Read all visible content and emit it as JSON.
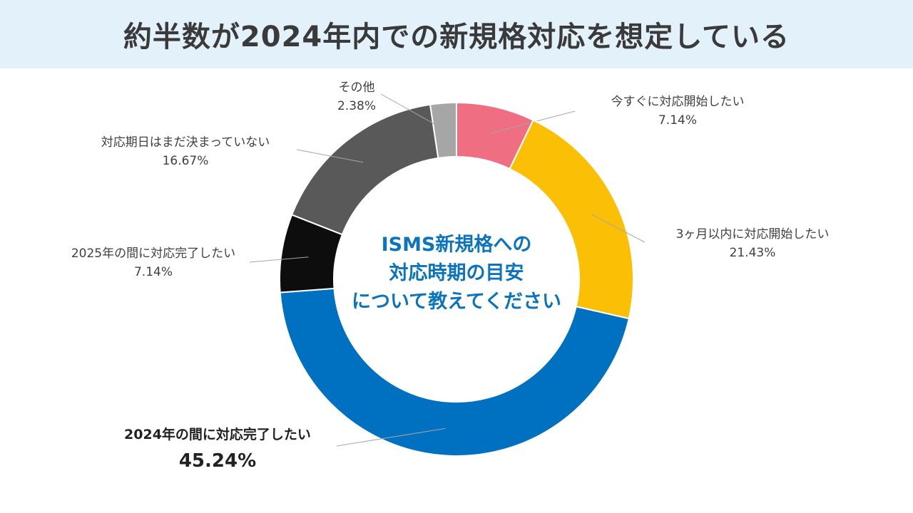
{
  "header": {
    "title": "約半数が2024年内での新規格対応を想定している"
  },
  "center": {
    "line1": "ISMS新規格への",
    "line2": "対応時期の目安",
    "line3": "について教えてください"
  },
  "chart_data": {
    "type": "pie",
    "subtype": "donut",
    "title": "約半数が2024年内での新規格対応を想定している",
    "unit": "%",
    "slices": [
      {
        "label": "今すぐに対応開始したい",
        "value": 7.14,
        "display": "7.14%",
        "color": "#f06e82"
      },
      {
        "label": "3ヶ月以内に対応開始したい",
        "value": 21.43,
        "display": "21.43%",
        "color": "#fbbf05"
      },
      {
        "label": "2024年の間に対応完了したい",
        "value": 45.24,
        "display": "45.24%",
        "color": "#0070c0"
      },
      {
        "label": "2025年の間に対応完了したい",
        "value": 7.14,
        "display": "7.14%",
        "color": "#0d0d0d"
      },
      {
        "label": "対応期日はまだ決まっていない",
        "value": 16.67,
        "display": "16.67%",
        "color": "#595959"
      },
      {
        "label": "その他",
        "value": 2.38,
        "display": "2.38%",
        "color": "#a6a6a6"
      }
    ]
  }
}
